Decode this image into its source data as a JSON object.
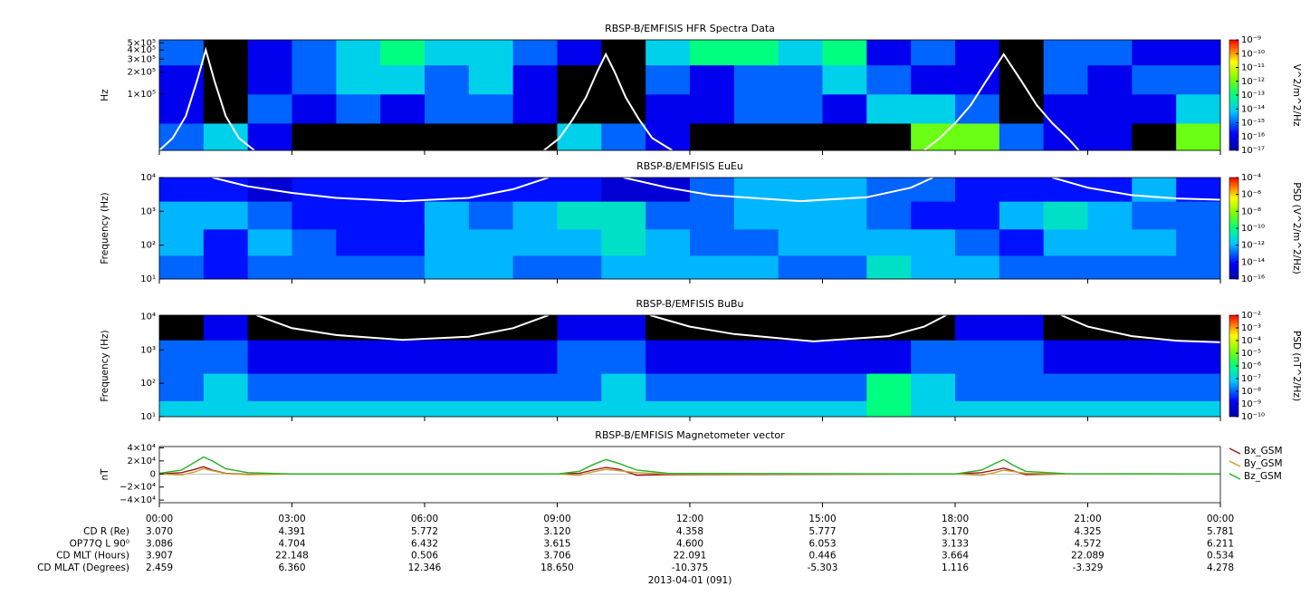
{
  "time_axis": {
    "xlim": [
      0,
      24
    ],
    "xticks": [
      {
        "value": 0,
        "label": "00:00"
      },
      {
        "value": 3,
        "label": "03:00"
      },
      {
        "value": 6,
        "label": "06:00"
      },
      {
        "value": 9,
        "label": "09:00"
      },
      {
        "value": 12,
        "label": "12:00"
      },
      {
        "value": 15,
        "label": "15:00"
      },
      {
        "value": 18,
        "label": "18:00"
      },
      {
        "value": 21,
        "label": "21:00"
      },
      {
        "value": 24,
        "label": "00:00"
      }
    ],
    "xlabel": "2013-04-01 (091)"
  },
  "ephemeris": {
    "rows": [
      {
        "label": "CD R (Re)",
        "values": [
          "3.070",
          "4.391",
          "5.772",
          "3.120",
          "4.358",
          "5.777",
          "3.170",
          "4.325",
          "5.781"
        ]
      },
      {
        "label": "OP77Q L 90⁰",
        "values": [
          "3.086",
          "4.704",
          "6.432",
          "3.615",
          "4.600",
          "6.053",
          "3.133",
          "4.572",
          "6.211"
        ]
      },
      {
        "label": "CD MLT (Hours)",
        "values": [
          "3.907",
          "22.148",
          "0.506",
          "3.706",
          "22.091",
          "0.446",
          "3.664",
          "22.089",
          "0.534"
        ]
      },
      {
        "label": "CD MLAT (Degrees)",
        "values": [
          "2.459",
          "6.360",
          "12.346",
          "18.650",
          "-10.375",
          "-5.303",
          "1.116",
          "-3.329",
          "4.278"
        ]
      }
    ]
  },
  "chart_data": [
    {
      "type": "heatmap",
      "title": "RBSP-B/EMFISIS  HFR Spectra Data",
      "ylabel": "Hz",
      "log": true,
      "ylim": [
        17000,
        550000
      ],
      "yticks": [
        {
          "value": 500000,
          "label": "5×10⁵"
        },
        {
          "value": 400000,
          "label": "4×10⁵"
        },
        {
          "value": 300000,
          "label": "3×10⁵"
        },
        {
          "value": 200000,
          "label": "2×10⁵"
        },
        {
          "value": 100000,
          "label": "1×10⁵"
        }
      ],
      "y_edges": [
        17000,
        40000,
        100000,
        250000,
        550000
      ],
      "values": [
        [
          -15,
          -14,
          -16,
          null,
          null,
          null,
          null,
          null,
          null,
          -14,
          -15,
          -16,
          null,
          null,
          null,
          null,
          null,
          -12,
          -12,
          -15,
          -16,
          -16,
          null,
          -12
        ],
        [
          -16,
          null,
          -15,
          -16,
          -15,
          -16,
          -15,
          -15,
          -16,
          null,
          null,
          -16,
          -16,
          -15,
          -15,
          -16,
          -14,
          -14,
          -15,
          null,
          -16,
          -16,
          -16,
          -14
        ],
        [
          -16,
          null,
          -16,
          -15,
          -14,
          -14,
          -15,
          -14,
          -16,
          null,
          null,
          -15,
          -16,
          -15,
          -15,
          -14,
          -15,
          -16,
          -16,
          null,
          -15,
          -16,
          -15,
          -15
        ],
        [
          -15,
          null,
          -16,
          -15,
          -14,
          -13,
          -14,
          -14,
          -15,
          -16,
          null,
          -14,
          -13,
          -13,
          -14,
          -13,
          -16,
          -15,
          -16,
          null,
          -15,
          -15,
          -16,
          -16
        ]
      ],
      "colorbar": {
        "label": "V^2/m^2/Hz",
        "lim": [
          -17,
          -9
        ],
        "ticks": [
          {
            "value": -9,
            "label": "10⁻⁹"
          },
          {
            "value": -10,
            "label": "10⁻¹⁰"
          },
          {
            "value": -11,
            "label": "10⁻¹¹"
          },
          {
            "value": -12,
            "label": "10⁻¹²"
          },
          {
            "value": -13,
            "label": "10⁻¹³"
          },
          {
            "value": -14,
            "label": "10⁻¹⁴"
          },
          {
            "value": -15,
            "label": "10⁻¹⁵"
          },
          {
            "value": -16,
            "label": "10⁻¹⁶"
          },
          {
            "value": -17,
            "label": "10⁻¹⁷"
          }
        ]
      },
      "overlay": {
        "color": "#ffffff",
        "x": [
          0,
          0.3,
          0.6,
          0.85,
          1.05,
          1.25,
          1.5,
          1.8,
          2.15,
          5,
          8.7,
          9.05,
          9.35,
          9.65,
          9.9,
          10.1,
          10.3,
          10.55,
          10.85,
          11.15,
          11.6,
          15,
          17.3,
          17.65,
          18.0,
          18.35,
          18.7,
          19.1,
          19.5,
          19.85,
          20.2,
          20.55,
          20.8
        ],
        "values": [
          17000,
          25000,
          50000,
          150000,
          400000,
          150000,
          50000,
          25000,
          17000,
          null,
          17000,
          25000,
          45000,
          90000,
          200000,
          350000,
          200000,
          90000,
          45000,
          25000,
          17000,
          null,
          17000,
          25000,
          40000,
          70000,
          150000,
          350000,
          150000,
          70000,
          40000,
          25000,
          17000
        ]
      }
    },
    {
      "type": "heatmap",
      "title": "RBSP-B/EMFISIS  EuEu",
      "ylabel": "Frequency (Hz)",
      "log": true,
      "ylim": [
        10,
        10000
      ],
      "yticks": [
        {
          "value": 10,
          "label": "10¹"
        },
        {
          "value": 100,
          "label": "10²"
        },
        {
          "value": 1000,
          "label": "10³"
        },
        {
          "value": 10000,
          "label": "10⁴"
        }
      ],
      "y_edges": [
        10,
        50,
        300,
        2000,
        10000
      ],
      "values": [
        [
          -13,
          -14,
          -13,
          -13,
          -13,
          -13,
          -12,
          -12,
          -13,
          -13,
          -12,
          -12,
          -12,
          -12,
          -13,
          -13,
          -11,
          -12,
          -12,
          -13,
          -13,
          -13,
          -13,
          -13
        ],
        [
          -12,
          -14,
          -12,
          -13,
          -14,
          -14,
          -12,
          -12,
          -12,
          -12,
          -11,
          -12,
          -13,
          -13,
          -12,
          -12,
          -12,
          -12,
          -13,
          -14,
          -12,
          -12,
          -12,
          -13
        ],
        [
          -12,
          -12,
          -13,
          -14,
          -14,
          -14,
          -12,
          -13,
          -12,
          -11,
          -11,
          -13,
          -13,
          -12,
          -12,
          -12,
          -13,
          -14,
          -14,
          -12,
          -11,
          -12,
          -13,
          -13
        ],
        [
          -14,
          -14,
          -15,
          -14,
          -14,
          -14,
          -14,
          -14,
          -14,
          -14,
          -15,
          -15,
          -13,
          -12,
          -12,
          -12,
          -13,
          -13,
          -14,
          -14,
          -14,
          -14,
          -12,
          -14
        ]
      ],
      "colorbar": {
        "label": "PSD (V^2/m^2/Hz)",
        "lim": [
          -16,
          -4
        ],
        "ticks": [
          {
            "value": -4,
            "label": "10⁻⁴"
          },
          {
            "value": -6,
            "label": "10⁻⁶"
          },
          {
            "value": -8,
            "label": "10⁻⁸"
          },
          {
            "value": -10,
            "label": "10⁻¹⁰"
          },
          {
            "value": -12,
            "label": "10⁻¹²"
          },
          {
            "value": -14,
            "label": "10⁻¹⁴"
          },
          {
            "value": -16,
            "label": "10⁻¹⁶"
          }
        ]
      },
      "overlay": {
        "color": "#ffffff",
        "x": [
          1.2,
          2,
          3,
          4,
          5.5,
          7,
          8,
          8.8,
          9.5,
          10.5,
          11.5,
          12.5,
          14.5,
          16,
          17,
          17.5,
          19,
          20.2,
          21,
          22,
          23,
          24
        ],
        "values": [
          10000,
          5500,
          3500,
          2500,
          2000,
          2500,
          4500,
          10000,
          null,
          10000,
          5000,
          3000,
          2000,
          2600,
          5000,
          10000,
          null,
          10000,
          5000,
          3000,
          2400,
          2200
        ]
      }
    },
    {
      "type": "heatmap",
      "title": "RBSP-B/EMFISIS  BuBu",
      "ylabel": "Frequency (Hz)",
      "log": true,
      "ylim": [
        10,
        11000
      ],
      "yticks": [
        {
          "value": 10,
          "label": "10¹"
        },
        {
          "value": 100,
          "label": "10²"
        },
        {
          "value": 1000,
          "label": "10³"
        },
        {
          "value": 10000,
          "label": "10⁴"
        }
      ],
      "y_edges": [
        10,
        30,
        200,
        2000,
        11000
      ],
      "values": [
        [
          -7,
          -7,
          -7,
          -7,
          -7,
          -7,
          -7,
          -7,
          -7,
          -7,
          -7,
          -7,
          -7,
          -7,
          -7,
          -7,
          -6,
          -7,
          -7,
          -7,
          -7,
          -7,
          -7,
          -7
        ],
        [
          -8,
          -7,
          -8,
          -8,
          -8,
          -8,
          -8,
          -8,
          -8,
          -8,
          -7,
          -8,
          -8,
          -8,
          -8,
          -8,
          -6,
          -7,
          -8,
          -8,
          -8,
          -8,
          -8,
          -8
        ],
        [
          -8,
          -8,
          -9,
          -9,
          -9,
          -9,
          -9,
          -9,
          -9,
          -8,
          -8,
          -9,
          -9,
          -9,
          -9,
          -9,
          -9,
          -8,
          -8,
          -8,
          -9,
          -9,
          -9,
          -9
        ],
        [
          null,
          -9,
          null,
          null,
          null,
          null,
          null,
          null,
          null,
          -9,
          -9,
          null,
          null,
          null,
          null,
          null,
          null,
          null,
          -9,
          -9,
          null,
          null,
          null,
          null
        ]
      ],
      "colorbar": {
        "label": "PSD (nT^2/Hz)",
        "lim": [
          -10,
          -2
        ],
        "ticks": [
          {
            "value": -2,
            "label": "10⁻²"
          },
          {
            "value": -3,
            "label": "10⁻³"
          },
          {
            "value": -4,
            "label": "10⁻⁴"
          },
          {
            "value": -5,
            "label": "10⁻⁵"
          },
          {
            "value": -6,
            "label": "10⁻⁶"
          },
          {
            "value": -7,
            "label": "10⁻⁷"
          },
          {
            "value": -8,
            "label": "10⁻⁸"
          },
          {
            "value": -9,
            "label": "10⁻⁹"
          },
          {
            "value": -10,
            "label": "10⁻¹⁰"
          }
        ]
      },
      "overlay": {
        "color": "#ffffff",
        "x": [
          2.2,
          3,
          4,
          5.5,
          7,
          8,
          8.8,
          10,
          11.1,
          12,
          13,
          14.8,
          16.5,
          17.3,
          17.8,
          19,
          20.4,
          21,
          22,
          23,
          24
        ],
        "values": [
          11000,
          4500,
          2800,
          2000,
          2500,
          4500,
          11000,
          null,
          11000,
          5000,
          3000,
          1800,
          2600,
          5000,
          11000,
          null,
          11000,
          5000,
          2600,
          1900,
          1700
        ]
      }
    },
    {
      "type": "line",
      "title": "RBSP-B/EMFISIS  Magnetometer vector",
      "ylabel": "nT",
      "log": false,
      "ylim": [
        -44000,
        42000
      ],
      "yticks": [
        {
          "value": 40000,
          "label": "4×10⁴"
        },
        {
          "value": 20000,
          "label": "2×10⁴"
        },
        0,
        {
          "value": -20000,
          "label": "−2×10⁴"
        },
        {
          "value": -40000,
          "label": "−4×10⁴"
        }
      ],
      "legend": "right",
      "x": [
        0,
        0.5,
        0.8,
        1.0,
        1.2,
        1.5,
        2,
        3,
        9,
        9.5,
        9.8,
        10.1,
        10.4,
        10.8,
        11.5,
        18,
        18.6,
        18.9,
        19.1,
        19.3,
        19.6,
        20.5,
        24
      ],
      "series": [
        {
          "name": "Bx_GSM",
          "color": "#a01818",
          "values": [
            0,
            2000,
            7000,
            11000,
            6000,
            1000,
            -500,
            0,
            0,
            1000,
            6000,
            10000,
            7000,
            -2000,
            -1000,
            0,
            2000,
            6000,
            9000,
            5000,
            -1000,
            0,
            0
          ]
        },
        {
          "name": "By_GSM",
          "color": "#c8a030",
          "values": [
            0,
            -1500,
            3000,
            8000,
            5000,
            500,
            -1000,
            0,
            0,
            -2000,
            3000,
            7000,
            5000,
            2000,
            0,
            0,
            -2000,
            2000,
            6000,
            4000,
            1000,
            0,
            0
          ]
        },
        {
          "name": "Bz_GSM",
          "color": "#22b022",
          "values": [
            1000,
            6000,
            18000,
            26000,
            20000,
            8000,
            2000,
            0,
            0,
            4000,
            14000,
            22000,
            16000,
            6000,
            1000,
            0,
            6000,
            16000,
            22000,
            14000,
            4000,
            500,
            0
          ]
        }
      ]
    }
  ]
}
